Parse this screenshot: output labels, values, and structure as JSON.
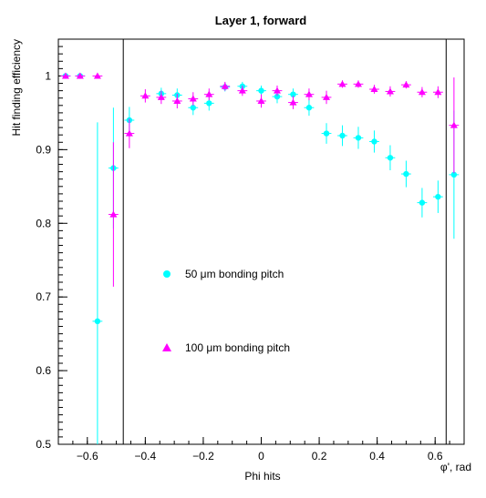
{
  "chart_data": {
    "type": "scatter",
    "title": "Layer 1, forward",
    "xlabel": "Phi hits",
    "ylabel": "Hit finding efficiency",
    "corner_label": "φ', rad",
    "xlim": [
      -0.7,
      0.7
    ],
    "ylim": [
      0.5,
      1.05
    ],
    "x_ticks": [
      -0.6,
      -0.4,
      -0.2,
      0,
      0.2,
      0.4,
      0.6
    ],
    "x_tick_labels": [
      "−0.6",
      "−0.4",
      "−0.2",
      "0",
      "0.2",
      "0.4",
      "0.6"
    ],
    "y_ticks": [
      0.5,
      0.6,
      0.7,
      0.8,
      0.9,
      1.0
    ],
    "y_tick_labels": [
      "0.5",
      "0.6",
      "0.7",
      "0.8",
      "0.9",
      "1"
    ],
    "vertical_lines": [
      -0.476,
      0.638
    ],
    "colors": {
      "series_50": "#00ffff",
      "series_100": "#ff00ff",
      "axes": "#000000"
    },
    "series": [
      {
        "name": "50 μm bonding pitch",
        "legend_label": "50 μm bonding pitch",
        "marker": "circle",
        "color": "#00ffff",
        "points": [
          {
            "x": -0.675,
            "y": 1.0,
            "xerr": 0.017,
            "yerr": 0.003
          },
          {
            "x": -0.625,
            "y": 1.0,
            "xerr": 0.017,
            "yerr": 0.003
          },
          {
            "x": -0.565,
            "y": 0.667,
            "xerr": 0.017,
            "yerr": 0.27
          },
          {
            "x": -0.51,
            "y": 0.875,
            "xerr": 0.017,
            "yerr": 0.082
          },
          {
            "x": -0.455,
            "y": 0.94,
            "xerr": 0.017,
            "yerr": 0.018
          },
          {
            "x": -0.345,
            "y": 0.976,
            "xerr": 0.017,
            "yerr": 0.008
          },
          {
            "x": -0.29,
            "y": 0.974,
            "xerr": 0.017,
            "yerr": 0.009
          },
          {
            "x": -0.235,
            "y": 0.957,
            "xerr": 0.017,
            "yerr": 0.01
          },
          {
            "x": -0.18,
            "y": 0.963,
            "xerr": 0.017,
            "yerr": 0.01
          },
          {
            "x": -0.125,
            "y": 0.985,
            "xerr": 0.017,
            "yerr": 0.006
          },
          {
            "x": -0.065,
            "y": 0.986,
            "xerr": 0.017,
            "yerr": 0.006
          },
          {
            "x": 0.0,
            "y": 0.98,
            "xerr": 0.017,
            "yerr": 0.007
          },
          {
            "x": 0.055,
            "y": 0.972,
            "xerr": 0.017,
            "yerr": 0.009
          },
          {
            "x": 0.11,
            "y": 0.975,
            "xerr": 0.017,
            "yerr": 0.008
          },
          {
            "x": 0.165,
            "y": 0.957,
            "xerr": 0.017,
            "yerr": 0.011
          },
          {
            "x": 0.225,
            "y": 0.922,
            "xerr": 0.017,
            "yerr": 0.014
          },
          {
            "x": 0.28,
            "y": 0.919,
            "xerr": 0.017,
            "yerr": 0.014
          },
          {
            "x": 0.335,
            "y": 0.916,
            "xerr": 0.017,
            "yerr": 0.015
          },
          {
            "x": 0.39,
            "y": 0.911,
            "xerr": 0.017,
            "yerr": 0.015
          },
          {
            "x": 0.445,
            "y": 0.889,
            "xerr": 0.017,
            "yerr": 0.017
          },
          {
            "x": 0.5,
            "y": 0.867,
            "xerr": 0.017,
            "yerr": 0.018
          },
          {
            "x": 0.555,
            "y": 0.828,
            "xerr": 0.017,
            "yerr": 0.02
          },
          {
            "x": 0.61,
            "y": 0.836,
            "xerr": 0.017,
            "yerr": 0.022
          },
          {
            "x": 0.665,
            "y": 0.866,
            "xerr": 0.017,
            "yerr": 0.087
          }
        ]
      },
      {
        "name": "100 μm bonding pitch",
        "legend_label": "100 μm bonding pitch",
        "marker": "triangle",
        "color": "#ff00ff",
        "points": [
          {
            "x": -0.675,
            "y": 1.0,
            "xerr": 0.017,
            "yerr": 0.003
          },
          {
            "x": -0.625,
            "y": 1.0,
            "xerr": 0.017,
            "yerr": 0.003
          },
          {
            "x": -0.565,
            "y": 1.0,
            "xerr": 0.017,
            "yerr": 0.003
          },
          {
            "x": -0.51,
            "y": 0.812,
            "xerr": 0.017,
            "yerr": 0.098
          },
          {
            "x": -0.455,
            "y": 0.922,
            "xerr": 0.017,
            "yerr": 0.02
          },
          {
            "x": -0.4,
            "y": 0.973,
            "xerr": 0.017,
            "yerr": 0.009
          },
          {
            "x": -0.345,
            "y": 0.971,
            "xerr": 0.017,
            "yerr": 0.009
          },
          {
            "x": -0.29,
            "y": 0.966,
            "xerr": 0.017,
            "yerr": 0.01
          },
          {
            "x": -0.235,
            "y": 0.969,
            "xerr": 0.017,
            "yerr": 0.009
          },
          {
            "x": -0.18,
            "y": 0.975,
            "xerr": 0.017,
            "yerr": 0.008
          },
          {
            "x": -0.125,
            "y": 0.986,
            "xerr": 0.017,
            "yerr": 0.006
          },
          {
            "x": -0.065,
            "y": 0.98,
            "xerr": 0.017,
            "yerr": 0.007
          },
          {
            "x": 0.0,
            "y": 0.966,
            "xerr": 0.017,
            "yerr": 0.009
          },
          {
            "x": 0.055,
            "y": 0.98,
            "xerr": 0.017,
            "yerr": 0.007
          },
          {
            "x": 0.11,
            "y": 0.964,
            "xerr": 0.017,
            "yerr": 0.009
          },
          {
            "x": 0.165,
            "y": 0.975,
            "xerr": 0.017,
            "yerr": 0.008
          },
          {
            "x": 0.225,
            "y": 0.971,
            "xerr": 0.017,
            "yerr": 0.009
          },
          {
            "x": 0.28,
            "y": 0.989,
            "xerr": 0.017,
            "yerr": 0.005
          },
          {
            "x": 0.335,
            "y": 0.989,
            "xerr": 0.017,
            "yerr": 0.005
          },
          {
            "x": 0.39,
            "y": 0.982,
            "xerr": 0.017,
            "yerr": 0.006
          },
          {
            "x": 0.445,
            "y": 0.979,
            "xerr": 0.017,
            "yerr": 0.007
          },
          {
            "x": 0.5,
            "y": 0.988,
            "xerr": 0.017,
            "yerr": 0.005
          },
          {
            "x": 0.555,
            "y": 0.978,
            "xerr": 0.017,
            "yerr": 0.007
          },
          {
            "x": 0.61,
            "y": 0.978,
            "xerr": 0.017,
            "yerr": 0.008
          },
          {
            "x": 0.665,
            "y": 0.933,
            "xerr": 0.017,
            "yerr": 0.065
          }
        ]
      }
    ]
  }
}
